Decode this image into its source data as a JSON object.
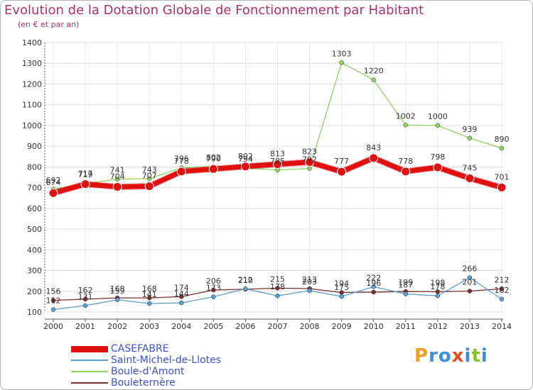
{
  "header": {
    "title": "Evolution de la Dotation Globale de Fonctionnement par Habitant",
    "subtitle": "(en € et par an)"
  },
  "logo": {
    "text": "Proxiti"
  },
  "chart_data": {
    "type": "line",
    "title": "Evolution de la Dotation Globale de Fonctionnement par Habitant",
    "subtitle": "(en € et par an)",
    "xlabel": "",
    "ylabel": "",
    "ylim": [
      100,
      1400
    ],
    "yticks": [
      100,
      200,
      300,
      400,
      500,
      600,
      700,
      800,
      900,
      1000,
      1100,
      1200,
      1300,
      1400
    ],
    "grid": true,
    "legend_position": "bottom-left",
    "x": [
      2000,
      2001,
      2002,
      2003,
      2004,
      2005,
      2006,
      2007,
      2008,
      2009,
      2010,
      2011,
      2012,
      2013,
      2014
    ],
    "series": [
      {
        "name": "Boule-d'Amont",
        "color": "#8fd35f",
        "width": 1.3,
        "marker": 3,
        "values": [
          692,
          719,
          741,
          743,
          796,
          802,
          794,
          785,
          792,
          1303,
          1220,
          1002,
          1000,
          939,
          890
        ]
      },
      {
        "name": "Bouleternère",
        "color": "#7a2f2f",
        "width": 1.3,
        "marker": 3,
        "values": [
          156,
          162,
          168,
          168,
          174,
          206,
          210,
          215,
          213,
          194,
          196,
          199,
          198,
          201,
          212
        ]
      },
      {
        "name": "Saint-Michel-de-Llotes",
        "color": "#5a9fd4",
        "width": 1.3,
        "marker": 3,
        "values": [
          112,
          131,
          159,
          141,
          144,
          173,
          212,
          178,
          203,
          175,
          222,
          187,
          178,
          266,
          162
        ]
      },
      {
        "name": "CASEFABRE",
        "color": "#e01010",
        "width": 7,
        "marker": 6,
        "values": [
          674,
          717,
          704,
          707,
          778,
          790,
          802,
          813,
          823,
          777,
          843,
          778,
          798,
          745,
          701
        ]
      }
    ]
  }
}
